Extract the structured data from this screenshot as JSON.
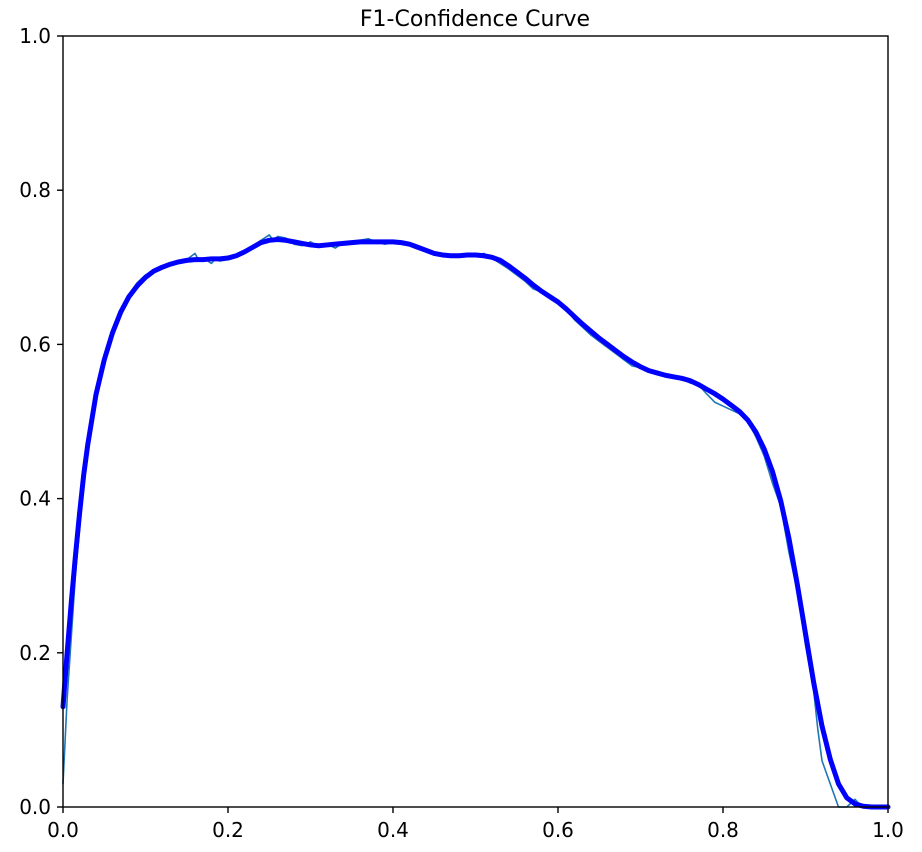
{
  "chart_data": {
    "type": "line",
    "title": "F1-Confidence Curve",
    "xlabel": "",
    "ylabel": "",
    "xlim": [
      0.0,
      1.0
    ],
    "ylim": [
      0.0,
      1.0
    ],
    "x_ticks": [
      "0.0",
      "0.2",
      "0.4",
      "0.6",
      "0.8",
      "1.0"
    ],
    "y_ticks": [
      "0.0",
      "0.2",
      "0.4",
      "0.6",
      "0.8",
      "1.0"
    ],
    "grid": false,
    "legend": "none",
    "colors": {
      "raw": "#1f77b4",
      "smooth": "#0000ff"
    },
    "series": [
      {
        "x": [
          0.0,
          0.005,
          0.01,
          0.015,
          0.02,
          0.025,
          0.03,
          0.04,
          0.05,
          0.06,
          0.07,
          0.08,
          0.09,
          0.1,
          0.11,
          0.12,
          0.13,
          0.14,
          0.15,
          0.16,
          0.165,
          0.17,
          0.18,
          0.185,
          0.19,
          0.2,
          0.21,
          0.22,
          0.23,
          0.24,
          0.25,
          0.255,
          0.26,
          0.27,
          0.28,
          0.29,
          0.3,
          0.31,
          0.32,
          0.33,
          0.34,
          0.35,
          0.36,
          0.37,
          0.38,
          0.39,
          0.4,
          0.41,
          0.42,
          0.43,
          0.44,
          0.45,
          0.46,
          0.47,
          0.48,
          0.49,
          0.5,
          0.51,
          0.52,
          0.53,
          0.54,
          0.55,
          0.56,
          0.57,
          0.58,
          0.59,
          0.6,
          0.61,
          0.62,
          0.63,
          0.64,
          0.65,
          0.66,
          0.67,
          0.68,
          0.69,
          0.7,
          0.71,
          0.72,
          0.73,
          0.74,
          0.75,
          0.76,
          0.77,
          0.78,
          0.79,
          0.8,
          0.81,
          0.82,
          0.83,
          0.84,
          0.85,
          0.86,
          0.87,
          0.88,
          0.89,
          0.9,
          0.91,
          0.915,
          0.92,
          0.93,
          0.94,
          0.95,
          0.96,
          0.965,
          0.97,
          0.975,
          0.98,
          0.99,
          1.0
        ],
        "y": [
          0.03,
          0.14,
          0.22,
          0.3,
          0.36,
          0.42,
          0.47,
          0.53,
          0.58,
          0.62,
          0.645,
          0.665,
          0.68,
          0.69,
          0.695,
          0.7,
          0.705,
          0.708,
          0.71,
          0.718,
          0.708,
          0.712,
          0.705,
          0.712,
          0.708,
          0.71,
          0.714,
          0.72,
          0.728,
          0.735,
          0.742,
          0.735,
          0.74,
          0.738,
          0.73,
          0.728,
          0.733,
          0.727,
          0.73,
          0.725,
          0.732,
          0.73,
          0.735,
          0.737,
          0.733,
          0.73,
          0.732,
          0.733,
          0.728,
          0.726,
          0.72,
          0.716,
          0.714,
          0.716,
          0.713,
          0.718,
          0.714,
          0.718,
          0.712,
          0.705,
          0.698,
          0.69,
          0.682,
          0.672,
          0.668,
          0.66,
          0.655,
          0.645,
          0.632,
          0.622,
          0.612,
          0.604,
          0.596,
          0.588,
          0.58,
          0.572,
          0.57,
          0.565,
          0.562,
          0.56,
          0.556,
          0.555,
          0.55,
          0.548,
          0.536,
          0.525,
          0.52,
          0.515,
          0.51,
          0.5,
          0.48,
          0.455,
          0.42,
          0.39,
          0.33,
          0.28,
          0.21,
          0.15,
          0.1,
          0.06,
          0.03,
          0.0,
          0.0,
          0.01,
          0.004,
          0.0,
          0.0,
          0.0,
          0.0,
          0.0
        ]
      },
      {
        "x": [
          0.0,
          0.005,
          0.01,
          0.015,
          0.02,
          0.025,
          0.03,
          0.04,
          0.05,
          0.06,
          0.07,
          0.08,
          0.09,
          0.1,
          0.11,
          0.12,
          0.13,
          0.14,
          0.15,
          0.16,
          0.17,
          0.18,
          0.19,
          0.2,
          0.21,
          0.22,
          0.23,
          0.24,
          0.25,
          0.26,
          0.27,
          0.28,
          0.29,
          0.3,
          0.31,
          0.32,
          0.33,
          0.34,
          0.35,
          0.36,
          0.37,
          0.38,
          0.39,
          0.4,
          0.41,
          0.42,
          0.43,
          0.44,
          0.45,
          0.46,
          0.47,
          0.48,
          0.49,
          0.5,
          0.51,
          0.52,
          0.53,
          0.54,
          0.55,
          0.56,
          0.57,
          0.58,
          0.59,
          0.6,
          0.61,
          0.62,
          0.63,
          0.64,
          0.65,
          0.66,
          0.67,
          0.68,
          0.69,
          0.7,
          0.71,
          0.72,
          0.73,
          0.74,
          0.75,
          0.76,
          0.77,
          0.78,
          0.79,
          0.8,
          0.81,
          0.82,
          0.83,
          0.84,
          0.85,
          0.86,
          0.87,
          0.88,
          0.89,
          0.9,
          0.91,
          0.92,
          0.93,
          0.94,
          0.95,
          0.96,
          0.97,
          0.98,
          0.99,
          1.0
        ],
        "y": [
          0.13,
          0.2,
          0.265,
          0.325,
          0.38,
          0.43,
          0.47,
          0.535,
          0.58,
          0.615,
          0.642,
          0.662,
          0.676,
          0.687,
          0.695,
          0.7,
          0.704,
          0.707,
          0.709,
          0.71,
          0.71,
          0.711,
          0.711,
          0.712,
          0.715,
          0.72,
          0.726,
          0.732,
          0.735,
          0.736,
          0.735,
          0.733,
          0.731,
          0.729,
          0.728,
          0.729,
          0.73,
          0.731,
          0.732,
          0.733,
          0.733,
          0.733,
          0.733,
          0.733,
          0.732,
          0.73,
          0.726,
          0.722,
          0.718,
          0.716,
          0.715,
          0.715,
          0.716,
          0.716,
          0.715,
          0.713,
          0.709,
          0.702,
          0.694,
          0.686,
          0.677,
          0.669,
          0.662,
          0.655,
          0.646,
          0.636,
          0.626,
          0.617,
          0.608,
          0.6,
          0.592,
          0.584,
          0.577,
          0.571,
          0.566,
          0.563,
          0.56,
          0.558,
          0.556,
          0.553,
          0.548,
          0.542,
          0.536,
          0.529,
          0.521,
          0.513,
          0.502,
          0.486,
          0.464,
          0.435,
          0.397,
          0.348,
          0.289,
          0.225,
          0.161,
          0.105,
          0.062,
          0.03,
          0.012,
          0.004,
          0.001,
          0.0,
          0.0,
          0.0
        ]
      }
    ]
  }
}
